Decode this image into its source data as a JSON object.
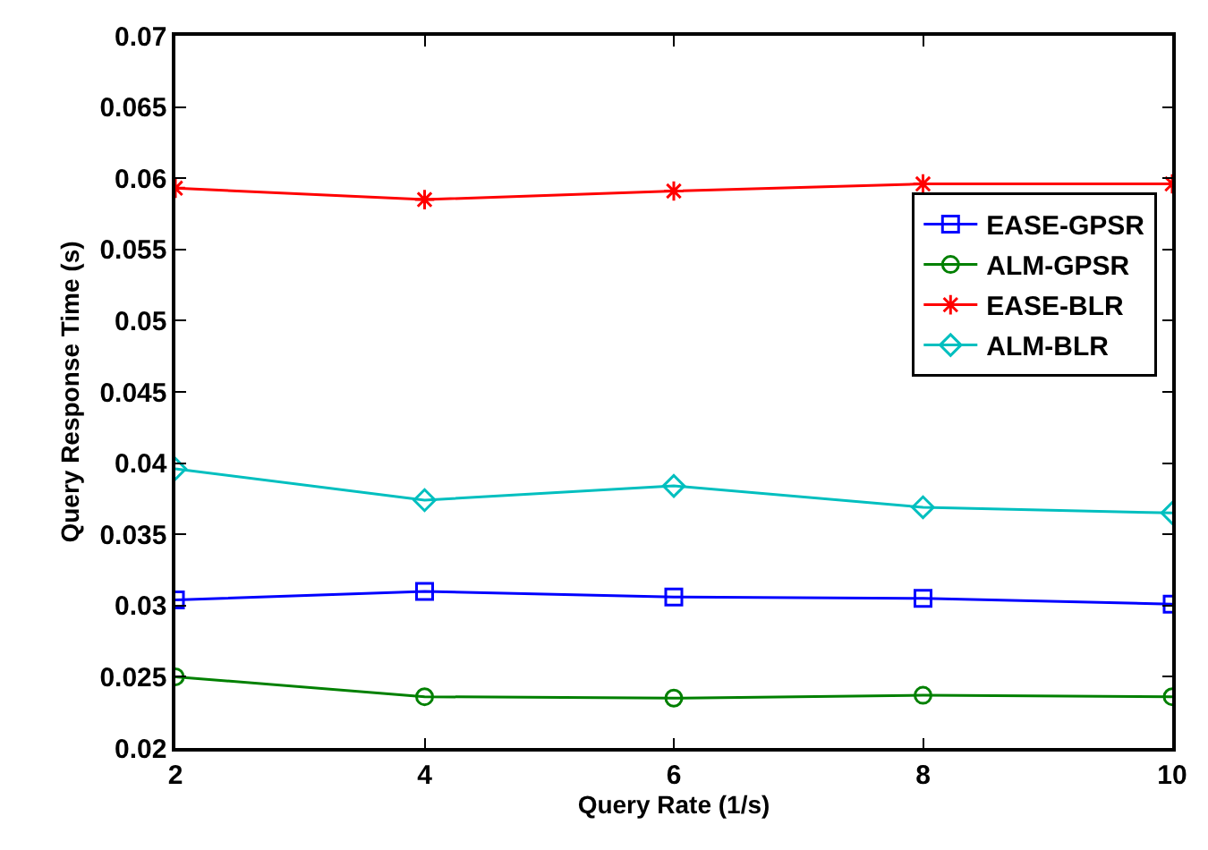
{
  "chart_data": {
    "type": "line",
    "xlabel": "Query Rate (1/s)",
    "ylabel": "Query Response Time (s)",
    "x": [
      2,
      4,
      6,
      8,
      10
    ],
    "series": [
      {
        "name": "EASE-GPSR",
        "color": "#0000ff",
        "marker": "square",
        "values": [
          0.0304,
          0.031,
          0.0306,
          0.0305,
          0.0301
        ]
      },
      {
        "name": "ALM-GPSR",
        "color": "#008000",
        "marker": "circle",
        "values": [
          0.025,
          0.0236,
          0.0235,
          0.0237,
          0.0236
        ]
      },
      {
        "name": "EASE-BLR",
        "color": "#ff0000",
        "marker": "cross",
        "values": [
          0.0593,
          0.0585,
          0.0591,
          0.0596,
          0.0596
        ]
      },
      {
        "name": "ALM-BLR",
        "color": "#00bfbf",
        "marker": "diamond",
        "values": [
          0.0396,
          0.0374,
          0.0384,
          0.0369,
          0.0365
        ]
      }
    ],
    "xlim": [
      2,
      10
    ],
    "xticks": [
      2,
      4,
      6,
      8,
      10
    ],
    "ylim": [
      0.02,
      0.07
    ],
    "yticks": [
      0.02,
      0.025,
      0.03,
      0.035,
      0.04,
      0.045,
      0.05,
      0.055,
      0.06,
      0.065,
      0.07
    ],
    "legend": "top right",
    "line_style": "solid"
  }
}
